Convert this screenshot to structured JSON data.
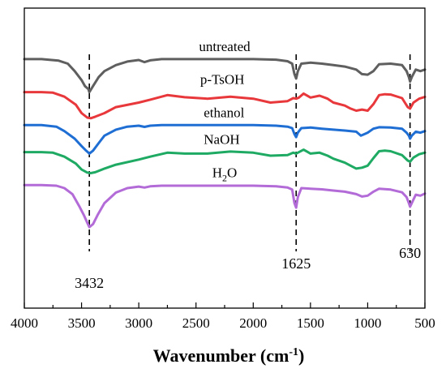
{
  "chart_data": {
    "type": "line",
    "title": "",
    "xlabel": "Wavenumber (cm",
    "xlabel_sup": "-1",
    "xlabel_close": ")",
    "ylabel": "",
    "xlim": [
      4000,
      500
    ],
    "ylim": [
      0,
      100
    ],
    "x_reversed": true,
    "y_ticks_shown": false,
    "grid": false,
    "x_ticks": [
      4000,
      3500,
      3000,
      2500,
      2000,
      1500,
      1000,
      500
    ],
    "x_tick_labels": [
      "4000",
      "3500",
      "3000",
      "2500",
      "2000",
      "1500",
      "1000",
      "500"
    ],
    "annotations": [
      {
        "x": 3432,
        "label": "3432"
      },
      {
        "x": 1625,
        "label": "1625"
      },
      {
        "x": 630,
        "label": "630"
      }
    ],
    "series_label_positions": [
      "above-each-curve"
    ],
    "series": [
      {
        "name": "untreated",
        "label_prefix": "untreated",
        "label_sub": "",
        "label_suffix": "",
        "color": "#5f5f5f",
        "label_x": 2250,
        "x": [
          4000,
          3850,
          3700,
          3620,
          3560,
          3500,
          3470,
          3440,
          3432,
          3400,
          3350,
          3300,
          3200,
          3100,
          3000,
          2950,
          2900,
          2800,
          2600,
          2400,
          2200,
          2000,
          1800,
          1700,
          1660,
          1640,
          1625,
          1610,
          1580,
          1500,
          1400,
          1300,
          1200,
          1100,
          1050,
          1000,
          950,
          900,
          800,
          700,
          660,
          640,
          630,
          615,
          580,
          540,
          500
        ],
        "y": [
          83,
          83,
          82.5,
          81.5,
          79,
          76,
          74,
          73,
          72,
          74,
          77,
          79,
          81,
          82.2,
          82.7,
          82,
          82.6,
          83,
          83,
          83,
          83,
          83,
          82.8,
          82.3,
          81.5,
          78,
          76.5,
          79,
          81.5,
          81.8,
          81.5,
          81,
          80.5,
          79.5,
          78,
          77.8,
          79,
          81.3,
          81.5,
          81,
          79,
          77,
          75.5,
          77,
          79.5,
          79,
          79.5
        ]
      },
      {
        "name": "p-TsOH",
        "label_prefix": "p-TsOH",
        "label_sub": "",
        "label_suffix": "",
        "color": "#e8383b",
        "label_x": 2270,
        "x": [
          4000,
          3850,
          3750,
          3650,
          3550,
          3500,
          3450,
          3420,
          3380,
          3300,
          3200,
          3000,
          2900,
          2750,
          2600,
          2400,
          2200,
          2000,
          1850,
          1700,
          1650,
          1625,
          1600,
          1560,
          1500,
          1420,
          1350,
          1300,
          1200,
          1150,
          1100,
          1050,
          1000,
          950,
          900,
          850,
          800,
          700,
          650,
          630,
          600,
          550,
          500
        ],
        "y": [
          72,
          72,
          71.8,
          70.5,
          67.8,
          65,
          63.5,
          63.3,
          63.8,
          65,
          67,
          68.5,
          69.5,
          71,
          70.3,
          69.8,
          70.5,
          69.8,
          68.5,
          69,
          70,
          69.8,
          70.2,
          71.5,
          70.2,
          70.8,
          69.8,
          68.5,
          67.5,
          66.5,
          65.8,
          66.2,
          65.8,
          68,
          71,
          71.3,
          71.2,
          70,
          67,
          66.5,
          68.5,
          69.8,
          70.4
        ]
      },
      {
        "name": "ethanol",
        "label_prefix": "ethanol",
        "label_sub": "",
        "label_suffix": "",
        "color": "#1f6ed4",
        "label_x": 2255,
        "x": [
          4000,
          3850,
          3720,
          3650,
          3560,
          3500,
          3460,
          3440,
          3432,
          3400,
          3350,
          3300,
          3200,
          3100,
          3000,
          2950,
          2900,
          2800,
          2600,
          2400,
          2200,
          2000,
          1800,
          1700,
          1660,
          1640,
          1625,
          1610,
          1580,
          1500,
          1400,
          1300,
          1200,
          1100,
          1060,
          1040,
          1000,
          950,
          900,
          800,
          700,
          660,
          640,
          630,
          615,
          580,
          540,
          500
        ],
        "y": [
          61,
          61,
          60.5,
          59,
          56.5,
          54,
          52.5,
          51.8,
          51.5,
          52.5,
          55,
          57.5,
          59.5,
          60.5,
          60.8,
          60.4,
          60.8,
          61,
          61,
          61,
          61,
          61,
          60.8,
          60.5,
          60,
          58,
          57,
          58.5,
          60,
          60.2,
          59.8,
          59.5,
          59.2,
          58.8,
          57.5,
          57.8,
          58.5,
          59.8,
          60.3,
          60.2,
          59.8,
          58.5,
          57.5,
          56.5,
          57.5,
          58.8,
          58.5,
          59
        ]
      },
      {
        "name": "NaOH",
        "label_prefix": "NaOH",
        "label_sub": "",
        "label_suffix": "",
        "color": "#1faa63",
        "label_x": 2275,
        "x": [
          4000,
          3850,
          3750,
          3650,
          3550,
          3500,
          3450,
          3420,
          3380,
          3300,
          3200,
          3000,
          2900,
          2750,
          2600,
          2400,
          2200,
          2000,
          1850,
          1700,
          1650,
          1625,
          1600,
          1560,
          1500,
          1420,
          1350,
          1300,
          1200,
          1150,
          1100,
          1050,
          1000,
          950,
          900,
          850,
          800,
          700,
          650,
          630,
          600,
          550,
          500
        ],
        "y": [
          52,
          52,
          51.8,
          50.5,
          48.2,
          46.2,
          45.2,
          45,
          45.3,
          46.5,
          47.8,
          49.5,
          50.5,
          51.8,
          51.5,
          51.5,
          52.2,
          51.8,
          50.8,
          51,
          51.8,
          51.5,
          52,
          52.8,
          51.5,
          51.8,
          50.8,
          49.8,
          48.5,
          47.5,
          46.5,
          46.8,
          47.5,
          50,
          52.3,
          52.5,
          52.3,
          51,
          49.2,
          48.8,
          50.2,
          51.3,
          51.8
        ]
      },
      {
        "name": "H2O",
        "label_prefix": "H",
        "label_sub": "2",
        "label_suffix": "O",
        "color": "#b36bd8",
        "label_x": 2250,
        "x": [
          4000,
          3850,
          3720,
          3650,
          3580,
          3520,
          3480,
          3450,
          3432,
          3400,
          3360,
          3300,
          3200,
          3100,
          3000,
          2950,
          2900,
          2800,
          2600,
          2400,
          2200,
          2000,
          1800,
          1700,
          1660,
          1640,
          1625,
          1610,
          1580,
          1500,
          1400,
          1300,
          1200,
          1100,
          1050,
          1000,
          950,
          900,
          800,
          700,
          660,
          640,
          630,
          615,
          580,
          540,
          500
        ],
        "y": [
          41,
          41,
          40.8,
          40,
          38,
          34,
          31,
          28.5,
          27,
          28,
          31,
          35,
          38.5,
          40,
          40.5,
          40.2,
          40.6,
          40.8,
          40.8,
          40.8,
          40.8,
          40.8,
          40.6,
          40.2,
          39.5,
          35,
          33.5,
          37,
          40,
          39.8,
          39.6,
          39.2,
          38.8,
          38,
          37.2,
          37.5,
          38.8,
          39.8,
          39.5,
          38.6,
          37,
          35,
          33.8,
          35,
          37.8,
          37.5,
          38.2
        ]
      }
    ]
  }
}
